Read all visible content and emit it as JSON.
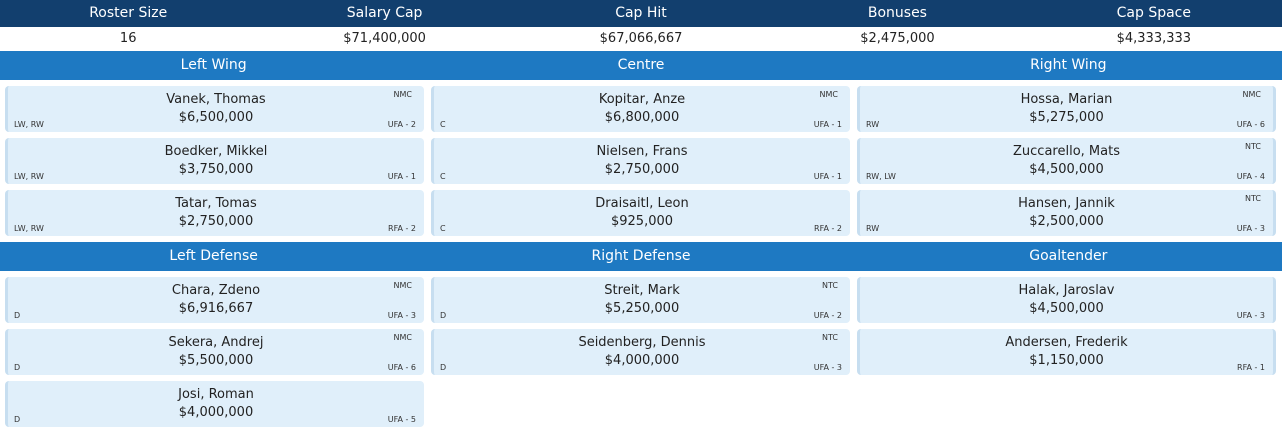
{
  "summary": {
    "headers": [
      "Roster Size",
      "Salary Cap",
      "Cap Hit",
      "Bonuses",
      "Cap Space"
    ],
    "values": [
      "16",
      "$71,400,000",
      "$67,066,667",
      "$2,475,000",
      "$4,333,333"
    ]
  },
  "forward_sections": [
    "Left Wing",
    "Centre",
    "Right Wing"
  ],
  "defense_sections": [
    "Left Defense",
    "Right Defense",
    "Goaltender"
  ],
  "left_wing": [
    {
      "name": "Vanek, Thomas",
      "cap_hit": "$6,500,000",
      "position": "LW, RW",
      "contract": "UFA - 2",
      "clause": "NMC"
    },
    {
      "name": "Boedker, Mikkel",
      "cap_hit": "$3,750,000",
      "position": "LW, RW",
      "contract": "UFA - 1",
      "clause": ""
    },
    {
      "name": "Tatar, Tomas",
      "cap_hit": "$2,750,000",
      "position": "LW, RW",
      "contract": "RFA - 2",
      "clause": ""
    }
  ],
  "centre": [
    {
      "name": "Kopitar, Anze",
      "cap_hit": "$6,800,000",
      "position": "C",
      "contract": "UFA - 1",
      "clause": "NMC"
    },
    {
      "name": "Nielsen, Frans",
      "cap_hit": "$2,750,000",
      "position": "C",
      "contract": "UFA - 1",
      "clause": ""
    },
    {
      "name": "Draisaitl, Leon",
      "cap_hit": "$925,000",
      "position": "C",
      "contract": "RFA - 2",
      "clause": ""
    }
  ],
  "right_wing": [
    {
      "name": "Hossa, Marian",
      "cap_hit": "$5,275,000",
      "position": "RW",
      "contract": "UFA - 6",
      "clause": "NMC"
    },
    {
      "name": "Zuccarello, Mats",
      "cap_hit": "$4,500,000",
      "position": "RW, LW",
      "contract": "UFA - 4",
      "clause": "NTC"
    },
    {
      "name": "Hansen, Jannik",
      "cap_hit": "$2,500,000",
      "position": "RW",
      "contract": "UFA - 3",
      "clause": "NTC"
    }
  ],
  "left_defense": [
    {
      "name": "Chara, Zdeno",
      "cap_hit": "$6,916,667",
      "position": "D",
      "contract": "UFA - 3",
      "clause": "NMC"
    },
    {
      "name": "Sekera, Andrej",
      "cap_hit": "$5,500,000",
      "position": "D",
      "contract": "UFA - 6",
      "clause": "NMC"
    },
    {
      "name": "Josi, Roman",
      "cap_hit": "$4,000,000",
      "position": "D",
      "contract": "UFA - 5",
      "clause": ""
    }
  ],
  "right_defense": [
    {
      "name": "Streit, Mark",
      "cap_hit": "$5,250,000",
      "position": "D",
      "contract": "UFA - 2",
      "clause": "NTC"
    },
    {
      "name": "Seidenberg, Dennis",
      "cap_hit": "$4,000,000",
      "position": "D",
      "contract": "UFA - 3",
      "clause": "NTC"
    }
  ],
  "goaltender": [
    {
      "name": "Halak, Jaroslav",
      "cap_hit": "$4,500,000",
      "position": "",
      "contract": "UFA - 3",
      "clause": ""
    },
    {
      "name": "Andersen, Frederik",
      "cap_hit": "$1,150,000",
      "position": "",
      "contract": "RFA - 1",
      "clause": ""
    }
  ]
}
